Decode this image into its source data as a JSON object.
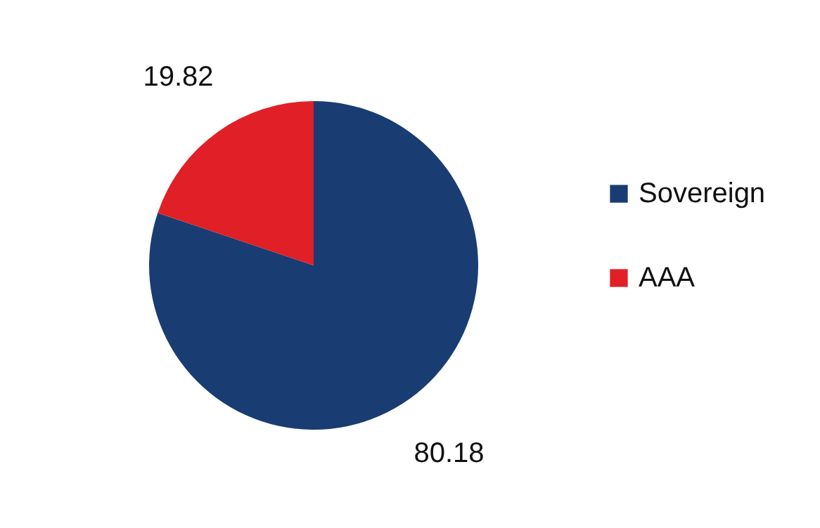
{
  "chart_data": {
    "type": "pie",
    "categories": [
      "Sovereign",
      "AAA"
    ],
    "values": [
      80.18,
      19.82
    ],
    "colors": [
      "#193d72",
      "#e01f27"
    ],
    "data_labels": true,
    "legend": "right"
  }
}
